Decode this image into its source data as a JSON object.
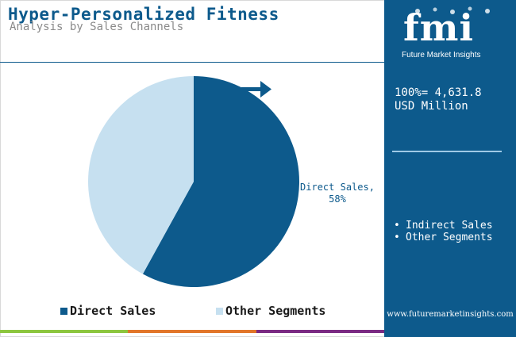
{
  "header": {
    "title": "Hyper-Personalized Fitness",
    "subtitle": "Analysis by Sales Channels"
  },
  "colors": {
    "brand": "#0d5a8c",
    "direct_sales": "#0d5a8c",
    "other_segments": "#c6e0f0",
    "bottom_bar": [
      "#8dc63f",
      "#e2762a",
      "#7b2b83"
    ]
  },
  "chart_data": {
    "type": "pie",
    "slices": [
      {
        "name": "Direct Sales",
        "value": 58,
        "label": "Direct Sales,",
        "value_label": "58%",
        "color": "#0d5a8c"
      },
      {
        "name": "Other Segments",
        "value": 42,
        "color": "#c6e0f0"
      }
    ],
    "start_angle_deg": 0,
    "legend": {
      "position": "bottom",
      "entries": [
        "Direct Sales",
        "Other Segments"
      ]
    },
    "title": "",
    "annotation_icon": "right-arrow-icon"
  },
  "side_panel": {
    "logo_text": "fmi",
    "logo_caption": "Future Market Insights",
    "total_line1": "100%= 4,631.8",
    "total_line2": "USD Million",
    "list": [
      "Indirect Sales",
      "Other Segments"
    ],
    "bullet": "•",
    "website": "www.futuremarketinsights.com"
  }
}
